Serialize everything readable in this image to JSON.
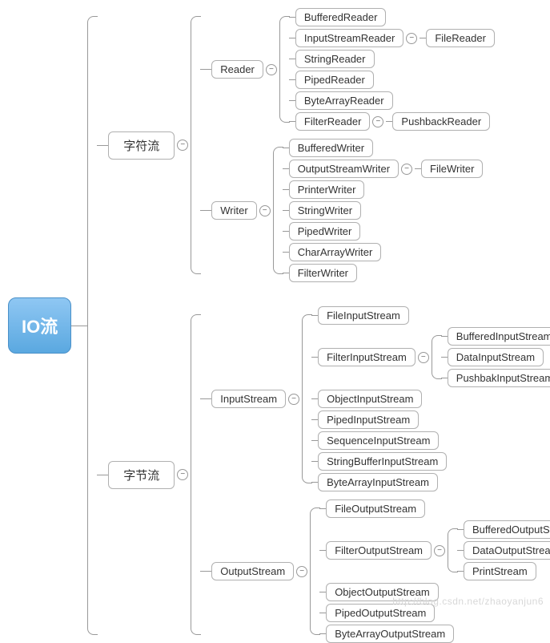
{
  "type": "tree",
  "background_color": "#ffffff",
  "node_border_color": "#b0b0b0",
  "connector_color": "#999999",
  "root_bg_gradient": [
    "#8fc7f3",
    "#5aa8e0"
  ],
  "root_text_color": "#ffffff",
  "node_text_color": "#333333",
  "root_fontsize": 22,
  "mid_fontsize": 15,
  "leaf_fontsize": 13,
  "watermark": "http://blog.csdn.net/zhaoyanjun6",
  "root": {
    "label": "IO流",
    "children": [
      {
        "label": "字符流",
        "children": [
          {
            "label": "Reader",
            "children": [
              {
                "label": "BufferedReader"
              },
              {
                "label": "InputStreamReader",
                "children": [
                  {
                    "label": "FileReader"
                  }
                ]
              },
              {
                "label": "StringReader"
              },
              {
                "label": "PipedReader"
              },
              {
                "label": "ByteArrayReader"
              },
              {
                "label": "FilterReader",
                "children": [
                  {
                    "label": "PushbackReader"
                  }
                ]
              }
            ]
          },
          {
            "label": "Writer",
            "children": [
              {
                "label": "BufferedWriter"
              },
              {
                "label": "OutputStreamWriter",
                "children": [
                  {
                    "label": "FileWriter"
                  }
                ]
              },
              {
                "label": "PrinterWriter"
              },
              {
                "label": "StringWriter"
              },
              {
                "label": "PipedWriter"
              },
              {
                "label": "CharArrayWriter"
              },
              {
                "label": "FilterWriter"
              }
            ]
          }
        ]
      },
      {
        "label": "字节流",
        "children": [
          {
            "label": "InputStream",
            "children": [
              {
                "label": "FileInputStream"
              },
              {
                "label": "FilterInputStream",
                "children": [
                  {
                    "label": "BufferedInputStream"
                  },
                  {
                    "label": "DataInputStream"
                  },
                  {
                    "label": "PushbakInputStream"
                  }
                ]
              },
              {
                "label": "ObjectInputStream"
              },
              {
                "label": "PipedInputStream"
              },
              {
                "label": "SequenceInputStream"
              },
              {
                "label": "StringBufferInputStream"
              },
              {
                "label": "ByteArrayInputStream"
              }
            ]
          },
          {
            "label": "OutputStream",
            "children": [
              {
                "label": "FileOutputStream"
              },
              {
                "label": "FilterOutputStream",
                "children": [
                  {
                    "label": "BufferedOutputStream"
                  },
                  {
                    "label": "DataOutputStream"
                  },
                  {
                    "label": "PrintStream"
                  }
                ]
              },
              {
                "label": "ObjectOutputStream"
              },
              {
                "label": "PipedOutputStream"
              },
              {
                "label": "ByteArrayOutputStream"
              }
            ]
          }
        ]
      }
    ]
  }
}
